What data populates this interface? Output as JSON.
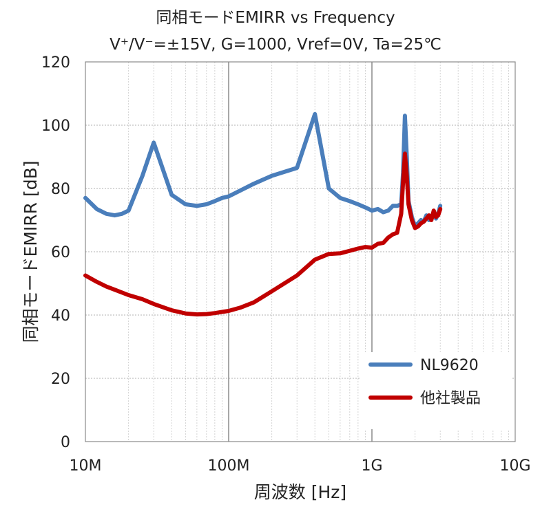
{
  "chart_data": {
    "type": "line",
    "title": "同相モードEMIRR vs Frequency",
    "subtitle": "V⁺/V⁻=±15V, G=1000, Vref=0V, Ta=25℃",
    "xlabel": "周波数 [Hz]",
    "ylabel": "同相モードEMIRR [dB]",
    "xscale": "log",
    "xlim": [
      10000000,
      10000000000
    ],
    "ylim": [
      0,
      120
    ],
    "xticks": [
      {
        "value": 10000000,
        "label": "10M"
      },
      {
        "value": 100000000,
        "label": "100M"
      },
      {
        "value": 1000000000,
        "label": "1G"
      },
      {
        "value": 10000000000,
        "label": "10G"
      }
    ],
    "yticks": [
      {
        "value": 0,
        "label": "0"
      },
      {
        "value": 20,
        "label": "20"
      },
      {
        "value": 40,
        "label": "40"
      },
      {
        "value": 60,
        "label": "60"
      },
      {
        "value": 80,
        "label": "80"
      },
      {
        "value": 100,
        "label": "100"
      },
      {
        "value": 120,
        "label": "120"
      }
    ],
    "grid": true,
    "legend": "bottom-right",
    "series": [
      {
        "name": "NL9620",
        "color": "#4a7ebb",
        "points": [
          [
            10000000,
            77
          ],
          [
            12000000,
            73.5
          ],
          [
            14000000,
            72
          ],
          [
            16000000,
            71.5
          ],
          [
            18000000,
            72
          ],
          [
            20000000,
            73
          ],
          [
            25000000,
            84
          ],
          [
            30000000,
            94.5
          ],
          [
            40000000,
            78
          ],
          [
            50000000,
            75
          ],
          [
            60000000,
            74.5
          ],
          [
            70000000,
            75
          ],
          [
            80000000,
            76
          ],
          [
            90000000,
            77
          ],
          [
            100000000,
            77.5
          ],
          [
            150000000,
            81.5
          ],
          [
            200000000,
            84
          ],
          [
            300000000,
            86.5
          ],
          [
            400000000,
            103.5
          ],
          [
            500000000,
            80
          ],
          [
            600000000,
            77
          ],
          [
            700000000,
            76
          ],
          [
            800000000,
            75
          ],
          [
            900000000,
            74
          ],
          [
            1000000000,
            73
          ],
          [
            1100000000,
            73.5
          ],
          [
            1200000000,
            72.5
          ],
          [
            1300000000,
            73
          ],
          [
            1400000000,
            74.5
          ],
          [
            1500000000,
            74.5
          ],
          [
            1600000000,
            75
          ],
          [
            1650000000,
            85
          ],
          [
            1700000000,
            103
          ],
          [
            1750000000,
            90
          ],
          [
            1800000000,
            76
          ],
          [
            1900000000,
            71
          ],
          [
            2000000000,
            68
          ],
          [
            2100000000,
            69
          ],
          [
            2200000000,
            70
          ],
          [
            2300000000,
            69.5
          ],
          [
            2400000000,
            71.5
          ],
          [
            2500000000,
            70
          ],
          [
            2600000000,
            71
          ],
          [
            2700000000,
            72.5
          ],
          [
            2800000000,
            70.5
          ],
          [
            2900000000,
            72
          ],
          [
            3000000000,
            74.5
          ]
        ]
      },
      {
        "name": "他社製品",
        "color": "#c00000",
        "points": [
          [
            10000000,
            52.5
          ],
          [
            12000000,
            50.5
          ],
          [
            14000000,
            49
          ],
          [
            16000000,
            48
          ],
          [
            20000000,
            46.3
          ],
          [
            25000000,
            45
          ],
          [
            30000000,
            43.5
          ],
          [
            40000000,
            41.5
          ],
          [
            50000000,
            40.5
          ],
          [
            60000000,
            40.2
          ],
          [
            70000000,
            40.3
          ],
          [
            80000000,
            40.6
          ],
          [
            100000000,
            41.3
          ],
          [
            120000000,
            42.3
          ],
          [
            150000000,
            44
          ],
          [
            200000000,
            47.5
          ],
          [
            300000000,
            52.5
          ],
          [
            400000000,
            57.5
          ],
          [
            500000000,
            59.3
          ],
          [
            600000000,
            59.5
          ],
          [
            700000000,
            60.3
          ],
          [
            800000000,
            61
          ],
          [
            900000000,
            61.5
          ],
          [
            1000000000,
            61.3
          ],
          [
            1100000000,
            62.5
          ],
          [
            1200000000,
            62.8
          ],
          [
            1300000000,
            64.5
          ],
          [
            1400000000,
            65.5
          ],
          [
            1500000000,
            66
          ],
          [
            1600000000,
            72
          ],
          [
            1650000000,
            82
          ],
          [
            1700000000,
            91
          ],
          [
            1750000000,
            84
          ],
          [
            1800000000,
            75
          ],
          [
            1900000000,
            70
          ],
          [
            2000000000,
            67.5
          ],
          [
            2100000000,
            68
          ],
          [
            2200000000,
            69
          ],
          [
            2300000000,
            69.5
          ],
          [
            2400000000,
            70.5
          ],
          [
            2500000000,
            71.5
          ],
          [
            2600000000,
            70
          ],
          [
            2700000000,
            73
          ],
          [
            2800000000,
            71
          ],
          [
            2900000000,
            71.5
          ],
          [
            3000000000,
            73.5
          ]
        ]
      }
    ]
  }
}
